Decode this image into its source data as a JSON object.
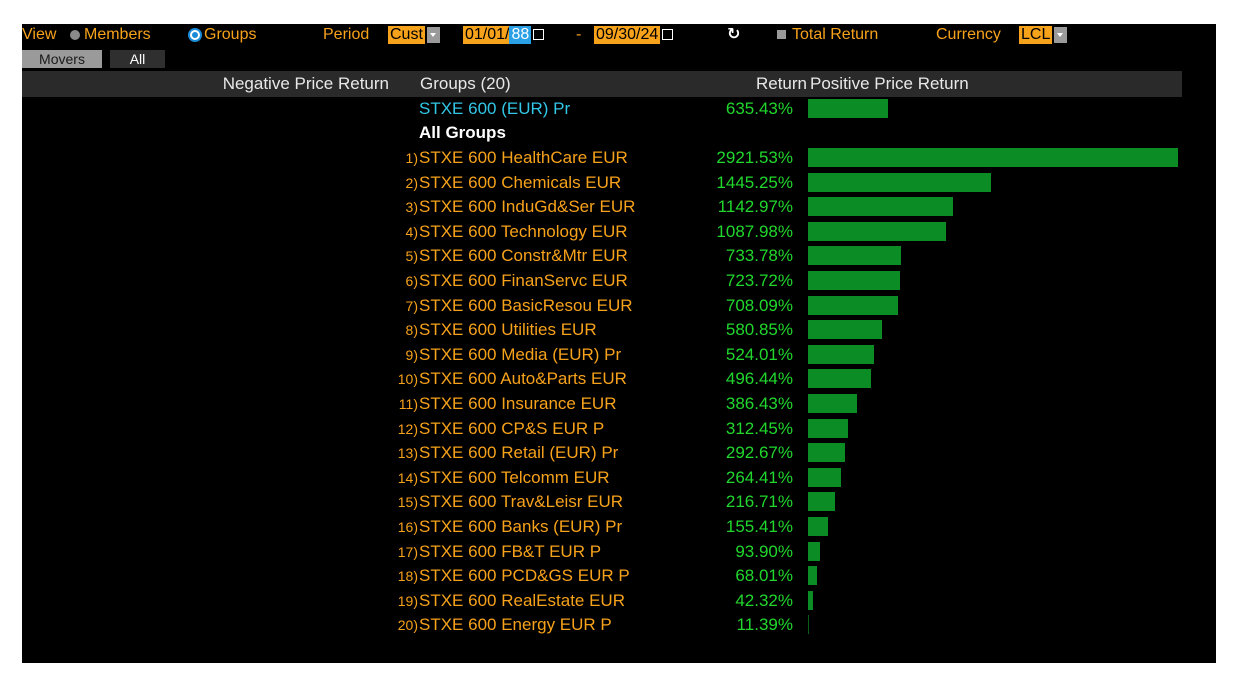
{
  "toolbar": {
    "view_label": "View",
    "members_label": "Members",
    "groups_label": "Groups",
    "period_label": "Period",
    "period_value": "Cust",
    "date_start_prefix": "01/01/",
    "date_start_year": "88",
    "date_separator": "-",
    "date_end": "09/30/24",
    "refresh_icon": "refresh-icon",
    "total_return_label": "Total Return",
    "currency_label": "Currency",
    "currency_value": "LCL"
  },
  "tabs": {
    "movers": "Movers",
    "all": "All"
  },
  "headers": {
    "negative": "Negative Price Return",
    "groups": "Groups (20)",
    "return": "Return",
    "positive": "Positive Price Return"
  },
  "benchmark": {
    "name": "STXE 600 (EUR) Pr",
    "return_text": "635.43%",
    "value": 635.43
  },
  "all_groups_label": "All Groups",
  "colors": {
    "orange": "#f7a21b",
    "green_text": "#21d72d",
    "bar": "#0b8c25",
    "benchmark_text": "#33c7e8"
  },
  "rows": [
    {
      "rank": "1)",
      "name": "STXE 600 HealthCare EUR",
      "return_text": "2921.53%",
      "value": 2921.53
    },
    {
      "rank": "2)",
      "name": "STXE 600 Chemicals EUR",
      "return_text": "1445.25%",
      "value": 1445.25
    },
    {
      "rank": "3)",
      "name": "STXE 600 InduGd&Ser EUR",
      "return_text": "1142.97%",
      "value": 1142.97
    },
    {
      "rank": "4)",
      "name": "STXE 600 Technology EUR",
      "return_text": "1087.98%",
      "value": 1087.98
    },
    {
      "rank": "5)",
      "name": "STXE 600 Constr&Mtr EUR",
      "return_text": "733.78%",
      "value": 733.78
    },
    {
      "rank": "6)",
      "name": "STXE 600 FinanServc EUR",
      "return_text": "723.72%",
      "value": 723.72
    },
    {
      "rank": "7)",
      "name": "STXE 600 BasicResou EUR",
      "return_text": "708.09%",
      "value": 708.09
    },
    {
      "rank": "8)",
      "name": "STXE 600 Utilities EUR",
      "return_text": "580.85%",
      "value": 580.85
    },
    {
      "rank": "9)",
      "name": "STXE 600 Media (EUR) Pr",
      "return_text": "524.01%",
      "value": 524.01
    },
    {
      "rank": "10)",
      "name": "STXE 600 Auto&Parts EUR",
      "return_text": "496.44%",
      "value": 496.44
    },
    {
      "rank": "11)",
      "name": "STXE 600 Insurance EUR",
      "return_text": "386.43%",
      "value": 386.43
    },
    {
      "rank": "12)",
      "name": "STXE 600 CP&S EUR P",
      "return_text": "312.45%",
      "value": 312.45
    },
    {
      "rank": "13)",
      "name": "STXE 600 Retail (EUR) Pr",
      "return_text": "292.67%",
      "value": 292.67
    },
    {
      "rank": "14)",
      "name": "STXE 600 Telcomm EUR",
      "return_text": "264.41%",
      "value": 264.41
    },
    {
      "rank": "15)",
      "name": "STXE 600 Trav&Leisr EUR",
      "return_text": "216.71%",
      "value": 216.71
    },
    {
      "rank": "16)",
      "name": "STXE 600 Banks (EUR) Pr",
      "return_text": "155.41%",
      "value": 155.41
    },
    {
      "rank": "17)",
      "name": "STXE 600 FB&T EUR P",
      "return_text": "93.90%",
      "value": 93.9
    },
    {
      "rank": "18)",
      "name": "STXE 600 PCD&GS EUR P",
      "return_text": "68.01%",
      "value": 68.01
    },
    {
      "rank": "19)",
      "name": "STXE 600 RealEstate EUR",
      "return_text": "42.32%",
      "value": 42.32
    },
    {
      "rank": "20)",
      "name": "STXE 600 Energy EUR P",
      "return_text": "11.39%",
      "value": 11.39
    }
  ]
}
